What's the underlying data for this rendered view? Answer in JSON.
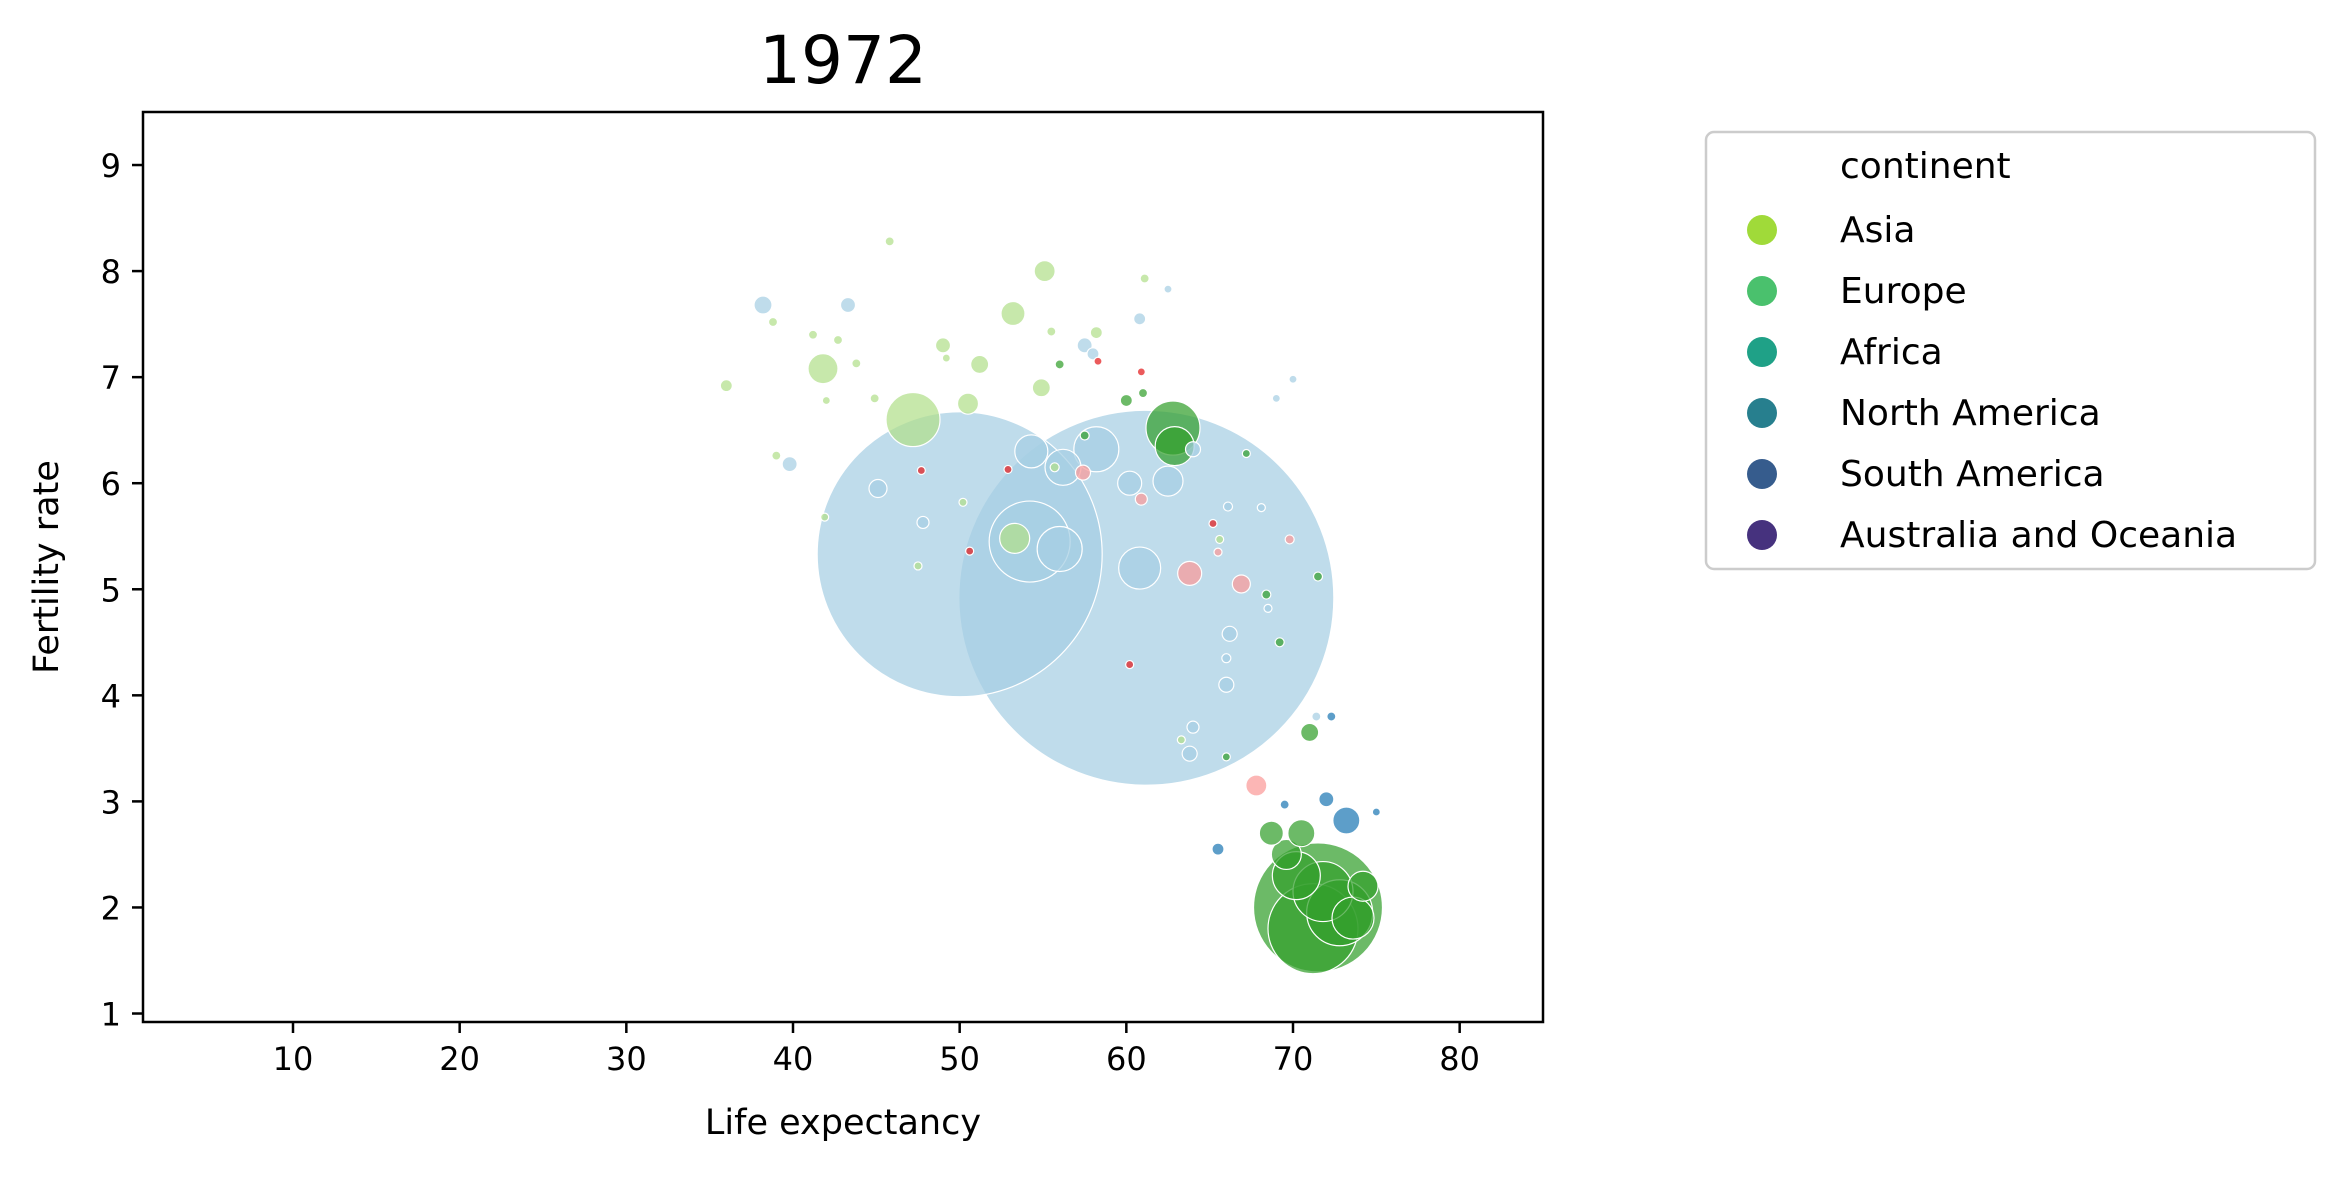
{
  "chart_data": {
    "type": "scatter",
    "title": "1972",
    "xlabel": "Life expectancy",
    "ylabel": "Fertility rate",
    "xlim": [
      1,
      85
    ],
    "ylim": [
      0.92,
      9.5
    ],
    "xticks": [
      10,
      20,
      30,
      40,
      50,
      60,
      70,
      80
    ],
    "yticks": [
      1,
      2,
      3,
      4,
      5,
      6,
      7,
      8,
      9
    ],
    "grid": false,
    "legend": {
      "title": "continent",
      "placement": "outside-right",
      "entries": [
        {
          "label": "Asia",
          "color": "#a0da39"
        },
        {
          "label": "Europe",
          "color": "#4ac16d"
        },
        {
          "label": "Africa",
          "color": "#1fa187"
        },
        {
          "label": "North America",
          "color": "#277f8e"
        },
        {
          "label": "South America",
          "color": "#365c8d"
        },
        {
          "label": "Australia and Oceania",
          "color": "#46327e"
        }
      ]
    },
    "point_colors": {
      "light_blue": "#a6cee3",
      "blue": "#1f78b4",
      "light_green": "#b2df8a",
      "green": "#33a02c",
      "pink": "#fb9a99",
      "red": "#e31a1c"
    },
    "points": [
      {
        "x": 50,
        "y": 5.33,
        "r": 95,
        "color": "light_blue"
      },
      {
        "x": 61.2,
        "y": 4.92,
        "r": 125,
        "color": "light_blue"
      },
      {
        "x": 71.5,
        "y": 2.0,
        "r": 43,
        "color": "green"
      },
      {
        "x": 71.2,
        "y": 1.8,
        "r": 30,
        "color": "green"
      },
      {
        "x": 72.8,
        "y": 1.95,
        "r": 22,
        "color": "green"
      },
      {
        "x": 71.8,
        "y": 2.15,
        "r": 20,
        "color": "green"
      },
      {
        "x": 70.2,
        "y": 2.3,
        "r": 16,
        "color": "green"
      },
      {
        "x": 73.6,
        "y": 1.9,
        "r": 14,
        "color": "green"
      },
      {
        "x": 69.6,
        "y": 2.5,
        "r": 10,
        "color": "green"
      },
      {
        "x": 74.2,
        "y": 2.2,
        "r": 10,
        "color": "green"
      },
      {
        "x": 68.7,
        "y": 2.7,
        "r": 8,
        "color": "green"
      },
      {
        "x": 70.5,
        "y": 2.7,
        "r": 9,
        "color": "green"
      },
      {
        "x": 62.8,
        "y": 6.52,
        "r": 18,
        "color": "green"
      },
      {
        "x": 62.9,
        "y": 6.35,
        "r": 13,
        "color": "green"
      },
      {
        "x": 71.0,
        "y": 3.65,
        "r": 6,
        "color": "green"
      },
      {
        "x": 71.5,
        "y": 5.12,
        "r": 3,
        "color": "green"
      },
      {
        "x": 69.2,
        "y": 4.5,
        "r": 3,
        "color": "green"
      },
      {
        "x": 68.4,
        "y": 4.95,
        "r": 3,
        "color": "green"
      },
      {
        "x": 66.0,
        "y": 3.42,
        "r": 2,
        "color": "green"
      },
      {
        "x": 61.0,
        "y": 6.85,
        "r": 3,
        "color": "green"
      },
      {
        "x": 60.0,
        "y": 6.78,
        "r": 4,
        "color": "green"
      },
      {
        "x": 57.5,
        "y": 6.45,
        "r": 3,
        "color": "green"
      },
      {
        "x": 56.0,
        "y": 7.12,
        "r": 3,
        "color": "green"
      },
      {
        "x": 67.2,
        "y": 6.28,
        "r": 2,
        "color": "green"
      },
      {
        "x": 73.2,
        "y": 2.82,
        "r": 9,
        "color": "blue"
      },
      {
        "x": 72.0,
        "y": 3.02,
        "r": 5,
        "color": "blue"
      },
      {
        "x": 72.3,
        "y": 3.8,
        "r": 3,
        "color": "blue"
      },
      {
        "x": 65.5,
        "y": 2.55,
        "r": 4,
        "color": "blue"
      },
      {
        "x": 75.0,
        "y": 2.9,
        "r": 2,
        "color": "blue"
      },
      {
        "x": 69.5,
        "y": 2.97,
        "r": 3,
        "color": "blue"
      },
      {
        "x": 54.2,
        "y": 5.45,
        "r": 27,
        "color": "light_blue"
      },
      {
        "x": 56.0,
        "y": 5.38,
        "r": 15,
        "color": "light_blue"
      },
      {
        "x": 60.8,
        "y": 5.2,
        "r": 14,
        "color": "light_blue"
      },
      {
        "x": 58.2,
        "y": 6.32,
        "r": 15,
        "color": "light_blue"
      },
      {
        "x": 56.2,
        "y": 6.15,
        "r": 12,
        "color": "light_blue"
      },
      {
        "x": 54.3,
        "y": 6.3,
        "r": 11,
        "color": "light_blue"
      },
      {
        "x": 62.5,
        "y": 6.02,
        "r": 10,
        "color": "light_blue"
      },
      {
        "x": 60.2,
        "y": 6.0,
        "r": 8,
        "color": "light_blue"
      },
      {
        "x": 64.0,
        "y": 6.32,
        "r": 5,
        "color": "light_blue"
      },
      {
        "x": 66.2,
        "y": 4.58,
        "r": 5,
        "color": "light_blue"
      },
      {
        "x": 66.0,
        "y": 4.1,
        "r": 5,
        "color": "light_blue"
      },
      {
        "x": 63.8,
        "y": 3.45,
        "r": 5,
        "color": "light_blue"
      },
      {
        "x": 66.0,
        "y": 4.35,
        "r": 3,
        "color": "light_blue"
      },
      {
        "x": 68.5,
        "y": 4.82,
        "r": 2,
        "color": "light_blue"
      },
      {
        "x": 71.4,
        "y": 3.8,
        "r": 3,
        "color": "light_blue"
      },
      {
        "x": 38.2,
        "y": 7.68,
        "r": 6,
        "color": "light_blue"
      },
      {
        "x": 43.3,
        "y": 7.68,
        "r": 5,
        "color": "light_blue"
      },
      {
        "x": 57.5,
        "y": 7.3,
        "r": 5,
        "color": "light_blue"
      },
      {
        "x": 58.0,
        "y": 7.22,
        "r": 4,
        "color": "light_blue"
      },
      {
        "x": 60.8,
        "y": 7.55,
        "r": 4,
        "color": "light_blue"
      },
      {
        "x": 62.5,
        "y": 7.83,
        "r": 2,
        "color": "light_blue"
      },
      {
        "x": 70.0,
        "y": 6.98,
        "r": 2,
        "color": "light_blue"
      },
      {
        "x": 69.0,
        "y": 6.8,
        "r": 1,
        "color": "light_blue"
      },
      {
        "x": 39.8,
        "y": 6.18,
        "r": 5,
        "color": "light_blue"
      },
      {
        "x": 45.1,
        "y": 5.95,
        "r": 6,
        "color": "light_blue"
      },
      {
        "x": 47.8,
        "y": 5.63,
        "r": 4,
        "color": "light_blue"
      },
      {
        "x": 66.1,
        "y": 5.78,
        "r": 3,
        "color": "light_blue"
      },
      {
        "x": 64.0,
        "y": 3.7,
        "r": 4,
        "color": "light_blue"
      },
      {
        "x": 68.1,
        "y": 5.77,
        "r": 1,
        "color": "light_blue"
      },
      {
        "x": 47.2,
        "y": 6.6,
        "r": 18,
        "color": "light_green"
      },
      {
        "x": 41.8,
        "y": 7.08,
        "r": 10,
        "color": "light_green"
      },
      {
        "x": 53.3,
        "y": 5.48,
        "r": 10,
        "color": "light_green"
      },
      {
        "x": 50.5,
        "y": 6.75,
        "r": 7,
        "color": "light_green"
      },
      {
        "x": 53.2,
        "y": 7.6,
        "r": 8,
        "color": "light_green"
      },
      {
        "x": 55.1,
        "y": 8.0,
        "r": 7,
        "color": "light_green"
      },
      {
        "x": 49.0,
        "y": 7.3,
        "r": 5,
        "color": "light_green"
      },
      {
        "x": 51.2,
        "y": 7.12,
        "r": 6,
        "color": "light_green"
      },
      {
        "x": 54.9,
        "y": 6.9,
        "r": 6,
        "color": "light_green"
      },
      {
        "x": 36.0,
        "y": 6.92,
        "r": 4,
        "color": "light_green"
      },
      {
        "x": 39.0,
        "y": 6.26,
        "r": 3,
        "color": "light_green"
      },
      {
        "x": 38.8,
        "y": 7.52,
        "r": 3,
        "color": "light_green"
      },
      {
        "x": 41.2,
        "y": 7.4,
        "r": 3,
        "color": "light_green"
      },
      {
        "x": 42.7,
        "y": 7.35,
        "r": 3,
        "color": "light_green"
      },
      {
        "x": 45.8,
        "y": 8.28,
        "r": 3,
        "color": "light_green"
      },
      {
        "x": 43.8,
        "y": 7.13,
        "r": 3,
        "color": "light_green"
      },
      {
        "x": 58.2,
        "y": 7.42,
        "r": 4,
        "color": "light_green"
      },
      {
        "x": 55.5,
        "y": 7.43,
        "r": 3,
        "color": "light_green"
      },
      {
        "x": 61.1,
        "y": 7.93,
        "r": 3,
        "color": "light_green"
      },
      {
        "x": 44.9,
        "y": 6.8,
        "r": 3,
        "color": "light_green"
      },
      {
        "x": 42.0,
        "y": 6.78,
        "r": 2,
        "color": "light_green"
      },
      {
        "x": 49.2,
        "y": 7.18,
        "r": 2,
        "color": "light_green"
      },
      {
        "x": 50.2,
        "y": 5.82,
        "r": 2,
        "color": "light_green"
      },
      {
        "x": 55.7,
        "y": 6.15,
        "r": 3,
        "color": "light_green"
      },
      {
        "x": 63.3,
        "y": 3.58,
        "r": 2,
        "color": "light_green"
      },
      {
        "x": 47.5,
        "y": 5.22,
        "r": 2,
        "color": "light_green"
      },
      {
        "x": 41.9,
        "y": 5.68,
        "r": 1,
        "color": "light_green"
      },
      {
        "x": 65.6,
        "y": 5.47,
        "r": 1,
        "color": "light_green"
      },
      {
        "x": 63.8,
        "y": 5.15,
        "r": 8,
        "color": "pink"
      },
      {
        "x": 66.9,
        "y": 5.05,
        "r": 6,
        "color": "pink"
      },
      {
        "x": 67.8,
        "y": 3.15,
        "r": 7,
        "color": "pink"
      },
      {
        "x": 57.4,
        "y": 6.1,
        "r": 5,
        "color": "pink"
      },
      {
        "x": 60.9,
        "y": 5.85,
        "r": 4,
        "color": "pink"
      },
      {
        "x": 69.8,
        "y": 5.47,
        "r": 3,
        "color": "pink"
      },
      {
        "x": 65.5,
        "y": 5.35,
        "r": 2,
        "color": "pink"
      },
      {
        "x": 47.7,
        "y": 6.12,
        "r": 2,
        "color": "red"
      },
      {
        "x": 60.2,
        "y": 4.29,
        "r": 2,
        "color": "red"
      },
      {
        "x": 60.9,
        "y": 7.05,
        "r": 2,
        "color": "red"
      },
      {
        "x": 58.3,
        "y": 7.15,
        "r": 1,
        "color": "red"
      },
      {
        "x": 50.6,
        "y": 5.36,
        "r": 1,
        "color": "red"
      },
      {
        "x": 52.9,
        "y": 6.13,
        "r": 1,
        "color": "red"
      },
      {
        "x": 65.2,
        "y": 5.62,
        "r": 1,
        "color": "red"
      }
    ]
  }
}
